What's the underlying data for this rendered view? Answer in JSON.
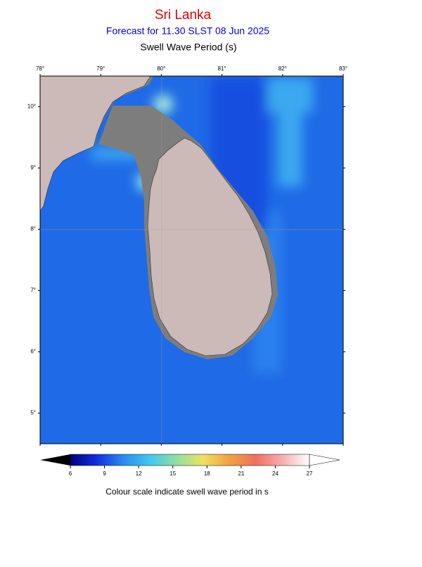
{
  "header": {
    "title": "Sri Lanka",
    "subtitle": "Forecast for  11.30 SLST 08 Jun 2025",
    "variable": "Swell Wave Period (s)"
  },
  "map": {
    "xlim": [
      78,
      83
    ],
    "ylim": [
      4.5,
      10.5
    ],
    "xticks": [
      {
        "value": 78,
        "label": "78°"
      },
      {
        "value": 79,
        "label": "79°"
      },
      {
        "value": 80,
        "label": "80°"
      },
      {
        "value": 81,
        "label": "81°"
      },
      {
        "value": 82,
        "label": "82°"
      },
      {
        "value": 83,
        "label": "83°"
      }
    ],
    "yticks": [
      {
        "value": 10,
        "label": "10°"
      },
      {
        "value": 9,
        "label": "9°"
      },
      {
        "value": 8,
        "label": "8°"
      },
      {
        "value": 7,
        "label": "7°"
      },
      {
        "value": 6,
        "label": "6°"
      },
      {
        "value": 5,
        "label": "5°"
      }
    ]
  },
  "colorbar": {
    "range": [
      6,
      27
    ],
    "ticks": [
      6,
      9,
      12,
      15,
      18,
      21,
      24,
      27
    ],
    "colors": [
      "#000080",
      "#1030e0",
      "#2a8cf0",
      "#40c8f0",
      "#90e0a0",
      "#f0e060",
      "#f0a040",
      "#f07060",
      "#f8b0b0",
      "#ffffff"
    ],
    "caption": "Colour scale indicate swell wave period in s"
  }
}
